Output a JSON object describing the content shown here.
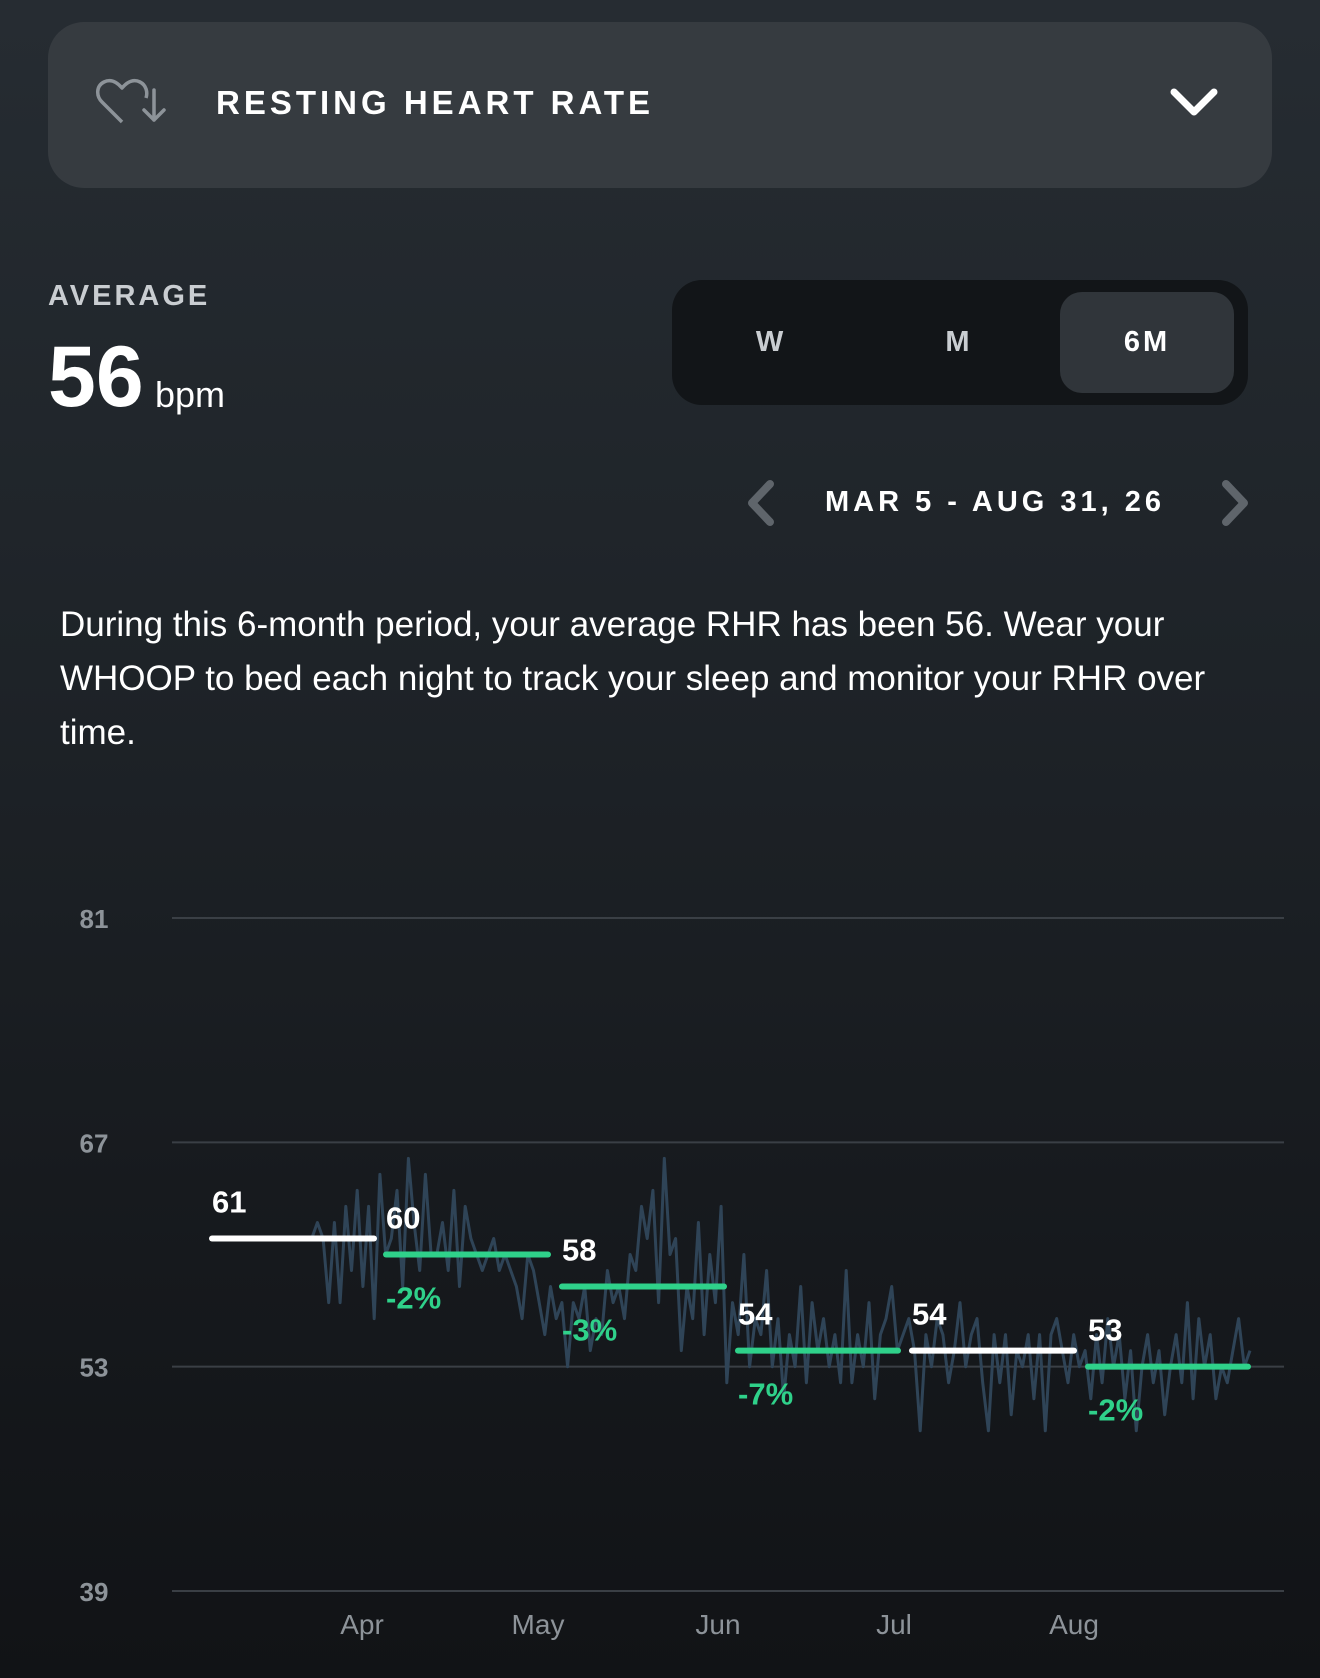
{
  "header": {
    "icon": "heart-down-icon",
    "title": "RESTING HEART RATE",
    "chevron_icon": "chevron-down-icon"
  },
  "summary": {
    "label": "AVERAGE",
    "value": "56",
    "unit": "bpm"
  },
  "range_selector": {
    "options": [
      "W",
      "M",
      "6M"
    ],
    "selected": "6M"
  },
  "date_nav": {
    "prev_icon": "chevron-left-icon",
    "next_icon": "chevron-right-icon",
    "range": "MAR 5 - AUG 31, 26"
  },
  "description": "During this 6-month period, your average RHR has been 56. Wear your WHOOP to bed each night to track your sleep and monitor your RHR over time.",
  "colors": {
    "green": "#2fd18a",
    "white": "#ffffff",
    "daily_line": "#2f4457",
    "grid": "#3a3f45"
  },
  "chart_data": {
    "type": "line",
    "ylim": [
      39,
      81
    ],
    "y_ticks": [
      81,
      67,
      53,
      39
    ],
    "x_ticks": [
      "Apr",
      "May",
      "Jun",
      "Jul",
      "Aug"
    ],
    "grid": true,
    "series": [
      {
        "values": [
          61,
          61,
          62,
          61,
          57,
          62,
          57,
          63,
          59,
          64,
          58,
          63,
          56,
          65,
          60,
          61,
          64,
          58,
          66,
          62,
          59,
          65,
          60,
          60,
          62,
          59,
          64,
          58,
          63,
          61,
          60,
          59,
          60,
          61,
          59,
          60,
          59,
          58,
          56,
          60,
          59,
          57,
          55,
          58,
          56,
          57,
          53,
          57,
          56,
          58,
          54,
          56,
          55,
          59,
          57,
          58,
          56,
          60,
          59,
          63,
          61,
          64,
          57,
          66,
          60,
          61,
          54,
          58,
          56,
          62,
          55,
          60,
          57,
          63,
          52,
          57,
          55,
          60,
          53,
          56,
          55,
          59,
          53,
          56,
          51,
          55,
          53,
          58,
          52,
          57,
          54,
          56,
          53,
          55,
          52,
          59,
          52,
          55,
          53,
          57,
          51,
          55,
          56,
          58,
          54,
          55,
          56,
          54,
          49,
          55,
          53,
          56,
          55,
          52,
          54,
          57,
          53,
          55,
          56,
          52,
          49,
          55,
          52,
          55,
          50,
          54,
          53,
          55,
          51,
          55,
          49,
          55,
          56,
          54,
          52,
          55,
          53,
          54,
          51,
          55,
          52,
          56,
          53,
          55,
          51,
          54,
          49,
          53,
          55,
          52,
          54,
          50,
          53,
          55,
          52,
          57,
          51,
          56,
          53,
          55,
          51,
          53,
          52,
          54,
          56,
          53,
          54
        ]
      }
    ],
    "monthly_averages": [
      {
        "month": "Mar",
        "value": 61,
        "change": "",
        "color": "white"
      },
      {
        "month": "Apr",
        "value": 60,
        "change": "-2%",
        "color": "green"
      },
      {
        "month": "May",
        "value": 58,
        "change": "-3%",
        "color": "green"
      },
      {
        "month": "Jun",
        "value": 54,
        "change": "-7%",
        "color": "green"
      },
      {
        "month": "Jul",
        "value": 54,
        "change": "",
        "color": "white"
      },
      {
        "month": "Aug",
        "value": 53,
        "change": "-2%",
        "color": "green"
      }
    ]
  }
}
